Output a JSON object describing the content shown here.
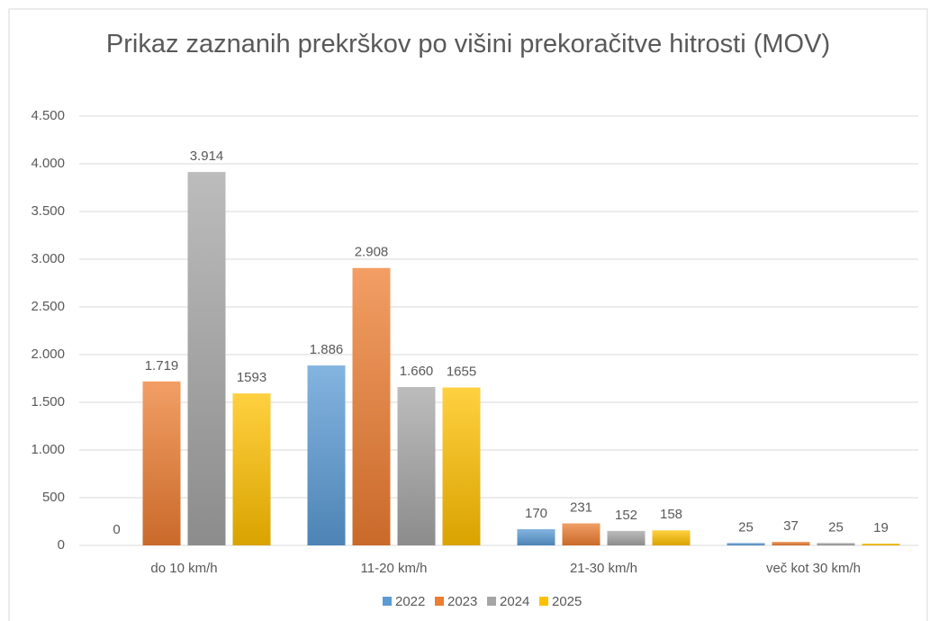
{
  "chart_data": {
    "type": "bar",
    "title": "Prikaz zaznanih prekrškov po višini prekoračitve hitrosti (MOV)",
    "categories": [
      "do 10 km/h",
      "11-20 km/h",
      "21-30 km/h",
      "več kot 30 km/h"
    ],
    "series": [
      {
        "name": "2022",
        "color": "#5b9bd5",
        "values": [
          0,
          1886,
          170,
          25
        ],
        "value_labels": [
          "0",
          "1.886",
          "170",
          "25"
        ]
      },
      {
        "name": "2023",
        "color": "#ed7d31",
        "values": [
          1719,
          2908,
          231,
          37
        ],
        "value_labels": [
          "1.719",
          "2.908",
          "231",
          "37"
        ]
      },
      {
        "name": "2024",
        "color": "#a5a5a5",
        "values": [
          3914,
          1660,
          152,
          25
        ],
        "value_labels": [
          "3.914",
          "1.660",
          "152",
          "25"
        ]
      },
      {
        "name": "2025",
        "color": "#ffc000",
        "values": [
          1593,
          1655,
          158,
          19
        ],
        "value_labels": [
          "1593",
          "1655",
          "158",
          "19"
        ]
      }
    ],
    "ylim": [
      0,
      4500
    ],
    "yticks": [
      0,
      500,
      {
        "value": 1000,
        "label": "1.000"
      },
      {
        "value": 1500,
        "label": "1.500"
      },
      {
        "value": 2000,
        "label": "2.000"
      },
      {
        "value": 2500,
        "label": "2.500"
      },
      {
        "value": 3000,
        "label": "3.000"
      },
      {
        "value": 3500,
        "label": "3.500"
      },
      {
        "value": 4000,
        "label": "4.000"
      },
      {
        "value": 4500,
        "label": "4.500"
      }
    ],
    "grid": true,
    "legend": "bottom"
  }
}
